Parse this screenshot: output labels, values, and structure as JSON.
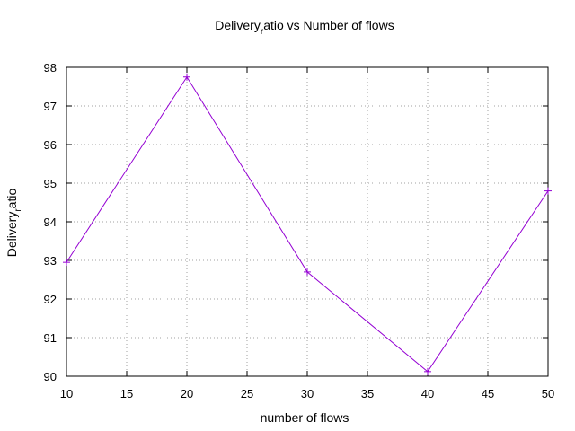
{
  "chart_data": {
    "type": "line",
    "title": {
      "prefix": "Delivery",
      "subscript": "r",
      "suffix": "atio vs Number of flows"
    },
    "xlabel": "number of flows",
    "ylabel": {
      "prefix": "Delivery",
      "subscript": "r",
      "suffix": "atio"
    },
    "xlim": [
      10,
      50
    ],
    "ylim": [
      90,
      98
    ],
    "xticks": [
      10,
      15,
      20,
      25,
      30,
      35,
      40,
      45,
      50
    ],
    "yticks": [
      90,
      91,
      92,
      93,
      94,
      95,
      96,
      97,
      98
    ],
    "grid": true,
    "series": [
      {
        "color": "#9400d3",
        "marker": "plus",
        "points": [
          {
            "x": 10,
            "y": 92.95
          },
          {
            "x": 20,
            "y": 97.75
          },
          {
            "x": 30,
            "y": 92.7
          },
          {
            "x": 40,
            "y": 90.12
          },
          {
            "x": 50,
            "y": 94.8
          }
        ]
      }
    ]
  }
}
